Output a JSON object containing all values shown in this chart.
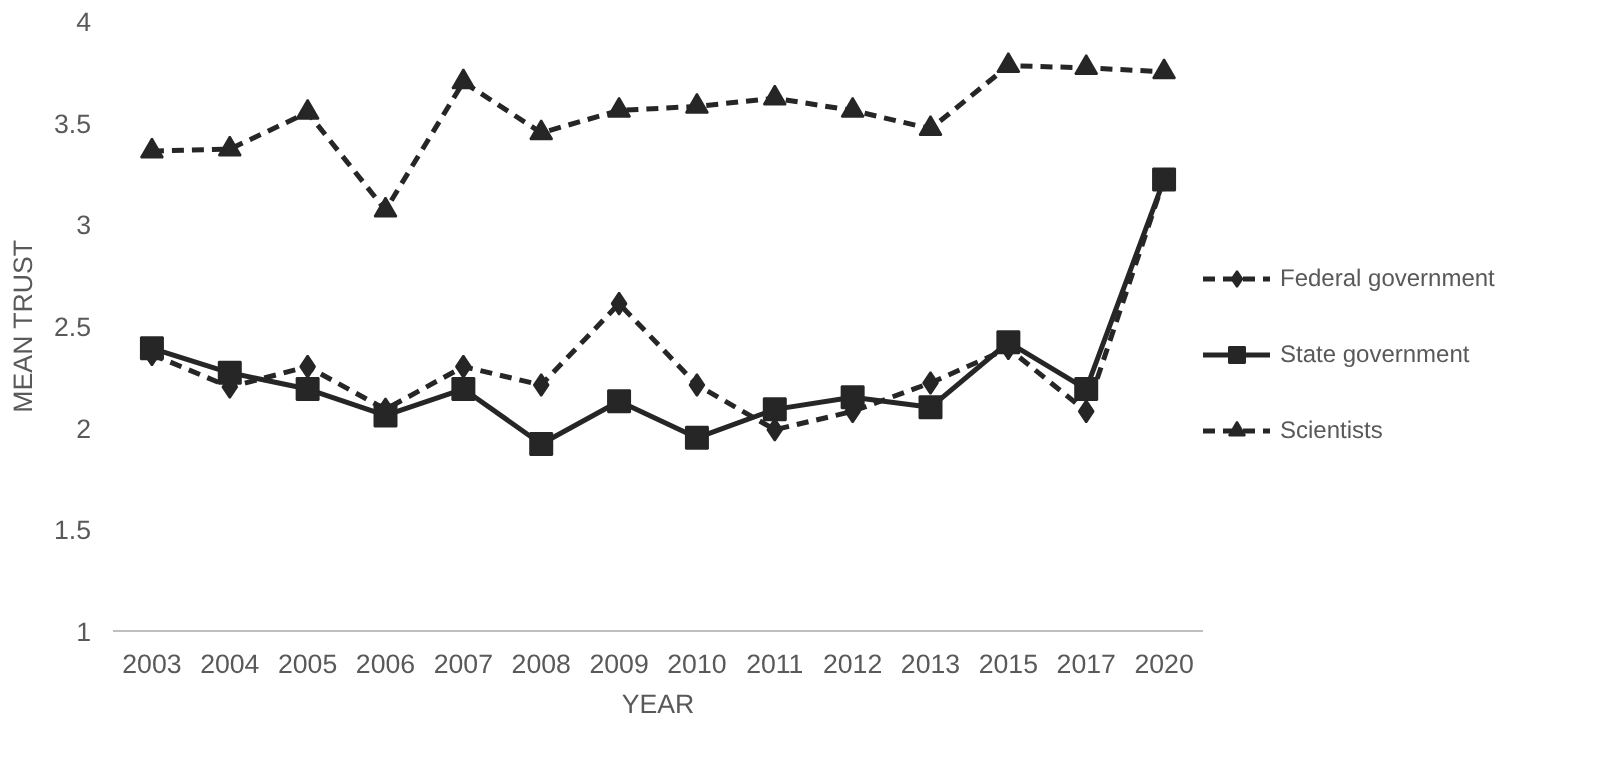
{
  "chart_data": {
    "type": "line",
    "xlabel": "YEAR",
    "ylabel": "MEAN TRUST",
    "categories": [
      "2003",
      "2004",
      "2005",
      "2006",
      "2007",
      "2008",
      "2009",
      "2010",
      "2011",
      "2012",
      "2013",
      "2015",
      "2017",
      "2020"
    ],
    "series": [
      {
        "name": "Federal government",
        "color": "#262626",
        "marker": "diamond",
        "line_style": "dashed",
        "values": [
          2.36,
          2.2,
          2.3,
          2.09,
          2.3,
          2.21,
          2.61,
          2.21,
          1.99,
          2.08,
          2.22,
          2.39,
          2.08,
          3.22
        ]
      },
      {
        "name": "State government",
        "color": "#262626",
        "marker": "square",
        "line_style": "solid",
        "values": [
          2.39,
          2.27,
          2.19,
          2.06,
          2.19,
          1.92,
          2.13,
          1.95,
          2.09,
          2.15,
          2.1,
          2.42,
          2.19,
          3.22
        ]
      },
      {
        "name": "Scientists",
        "color": "#262626",
        "marker": "triangle",
        "line_style": "dashed",
        "values": [
          3.36,
          3.37,
          3.55,
          3.07,
          3.7,
          3.45,
          3.56,
          3.58,
          3.62,
          3.56,
          3.47,
          3.78,
          3.77,
          3.75
        ]
      }
    ],
    "ylim": [
      1,
      4
    ],
    "yticks": [
      1,
      1.5,
      2,
      2.5,
      3,
      3.5,
      4
    ],
    "grid": false,
    "legend": "right"
  }
}
